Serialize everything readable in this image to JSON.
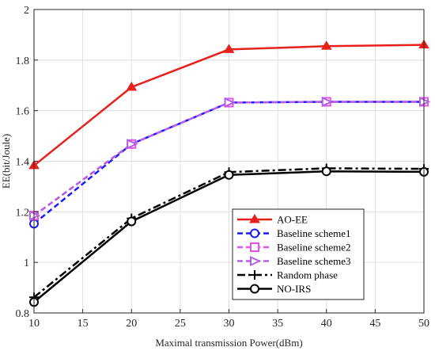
{
  "chart_data": {
    "type": "line",
    "title": "",
    "xlabel": "Maximal transmission Power(dBm)",
    "ylabel": "EE(bit/Joule)",
    "xlim": [
      10,
      50
    ],
    "ylim": [
      0.8,
      2
    ],
    "xticks": [
      10,
      15,
      20,
      25,
      30,
      35,
      40,
      45,
      50
    ],
    "yticks": [
      0.8,
      1,
      1.2,
      1.4,
      1.6,
      1.8,
      2
    ],
    "ytick_labels": [
      "0.8",
      "1",
      "1.2",
      "1.4",
      "1.6",
      "1.8",
      "2"
    ],
    "grid": true,
    "legend_position": "bottom-right",
    "x": [
      10,
      20,
      30,
      40,
      50
    ],
    "series": [
      {
        "name": "AO-EE",
        "values": [
          1.383,
          1.693,
          1.842,
          1.855,
          1.86
        ],
        "color": "#e8201c",
        "dash": "solid",
        "marker": "triangle-up",
        "width": 2.5
      },
      {
        "name": "Baseline scheme1",
        "values": [
          1.153,
          1.468,
          1.632,
          1.635,
          1.635
        ],
        "color": "#1a1aff",
        "dash": "dashed",
        "marker": "circle",
        "width": 2.5
      },
      {
        "name": "Baseline scheme2",
        "values": [
          1.185,
          1.468,
          1.632,
          1.635,
          1.635
        ],
        "color": "#e356e3",
        "dash": "dashed",
        "marker": "square",
        "width": 2.5
      },
      {
        "name": "Baseline scheme3",
        "values": [
          1.185,
          1.468,
          1.632,
          1.635,
          1.635
        ],
        "color": "#b45ee6",
        "dash": "dashed",
        "marker": "triangle-right",
        "width": 2.5
      },
      {
        "name": "Random phase",
        "values": [
          0.862,
          1.174,
          1.357,
          1.372,
          1.37
        ],
        "color": "#000000",
        "dash": "dashdot",
        "marker": "plus",
        "width": 2.5
      },
      {
        "name": "NO-IRS",
        "values": [
          0.843,
          1.162,
          1.346,
          1.36,
          1.358
        ],
        "color": "#000000",
        "dash": "solid",
        "marker": "circle",
        "width": 2.5
      }
    ]
  }
}
